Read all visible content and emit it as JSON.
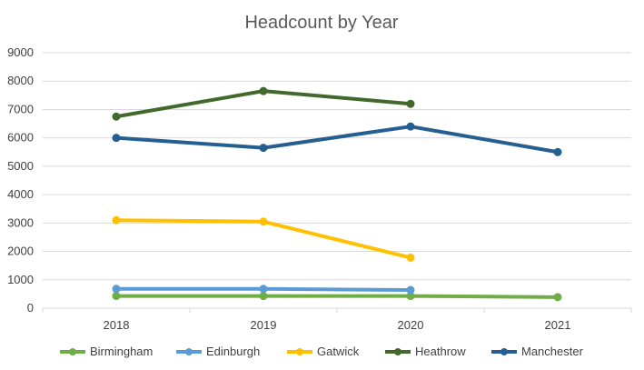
{
  "chart_data": {
    "type": "line",
    "title": "Headcount by Year",
    "xlabel": "",
    "ylabel": "",
    "categories": [
      "2018",
      "2019",
      "2020",
      "2021"
    ],
    "ylim": [
      0,
      9000
    ],
    "yticks": [
      "0",
      "1000",
      "2000",
      "3000",
      "4000",
      "5000",
      "6000",
      "7000",
      "8000",
      "9000"
    ],
    "grid": true,
    "legend_position": "bottom",
    "series": [
      {
        "name": "Birmingham",
        "color": "#70AD47",
        "values": [
          430,
          430,
          430,
          390
        ]
      },
      {
        "name": "Edinburgh",
        "color": "#5B9BD5",
        "values": [
          680,
          680,
          640,
          null
        ]
      },
      {
        "name": "Gatwick",
        "color": "#FFC000",
        "values": [
          3100,
          3050,
          1780,
          null
        ]
      },
      {
        "name": "Heathrow",
        "color": "#43682B",
        "values": [
          6750,
          7650,
          7200,
          null
        ]
      },
      {
        "name": "Manchester",
        "color": "#255E91",
        "values": [
          6000,
          5650,
          6400,
          5500
        ]
      }
    ]
  }
}
